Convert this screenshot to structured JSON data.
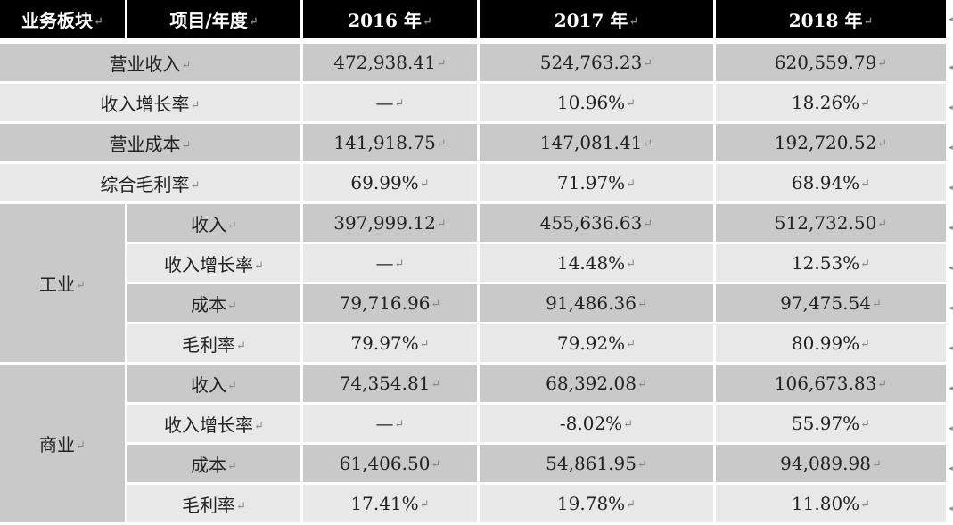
{
  "mark": "↵",
  "edge_mark": "◂",
  "header": {
    "segment": "业务板块",
    "item": "项目/年度",
    "y2016": "2016 年",
    "y2017": "2017 年",
    "y2018": "2018 年"
  },
  "summary_rows": [
    {
      "label": "营业收入",
      "v2016": "472,938.41",
      "v2017": "524,763.23",
      "v2018": "620,559.79"
    },
    {
      "label": "收入增长率",
      "v2016": "—",
      "v2017": "10.96%",
      "v2018": "18.26%"
    },
    {
      "label": "营业成本",
      "v2016": "141,918.75",
      "v2017": "147,081.41",
      "v2018": "192,720.52"
    },
    {
      "label": "综合毛利率",
      "v2016": "69.99%",
      "v2017": "71.97%",
      "v2018": "68.94%"
    }
  ],
  "segments": [
    {
      "name": "工业",
      "rows": [
        {
          "label": "收入",
          "v2016": "397,999.12",
          "v2017": "455,636.63",
          "v2018": "512,732.50"
        },
        {
          "label": "收入增长率",
          "v2016": "—",
          "v2017": "14.48%",
          "v2018": "12.53%"
        },
        {
          "label": "成本",
          "v2016": "79,716.96",
          "v2017": "91,486.36",
          "v2018": "97,475.54"
        },
        {
          "label": "毛利率",
          "v2016": "79.97%",
          "v2017": "79.92%",
          "v2018": "80.99%"
        }
      ]
    },
    {
      "name": "商业",
      "rows": [
        {
          "label": "收入",
          "v2016": "74,354.81",
          "v2017": "68,392.08",
          "v2018": "106,673.83"
        },
        {
          "label": "收入增长率",
          "v2016": "—",
          "v2017": "-8.02%",
          "v2018": "55.97%"
        },
        {
          "label": "成本",
          "v2016": "61,406.50",
          "v2017": "54,861.95",
          "v2018": "94,089.98"
        },
        {
          "label": "毛利率",
          "v2016": "17.41%",
          "v2017": "19.78%",
          "v2018": "11.80%"
        }
      ]
    }
  ]
}
